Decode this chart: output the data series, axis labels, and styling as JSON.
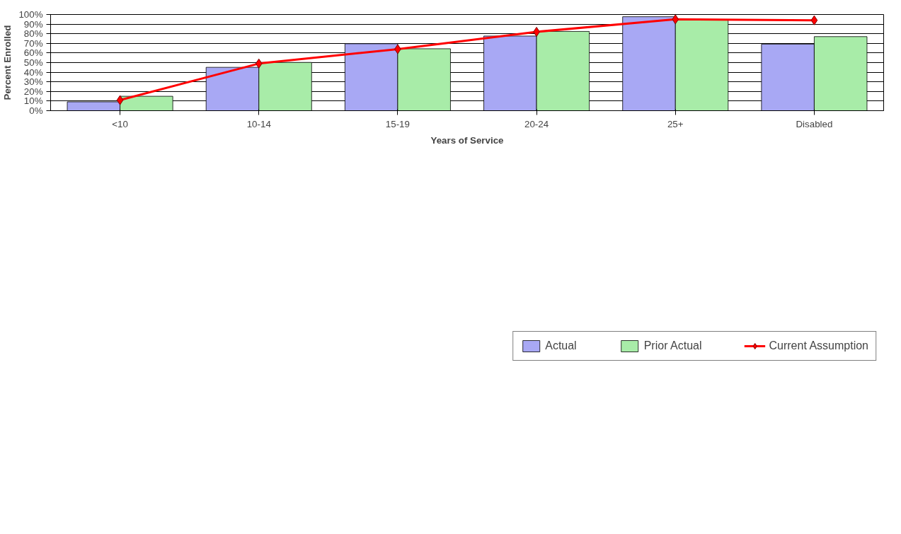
{
  "chart_data": {
    "type": "bar",
    "xlabel": "Years of Service",
    "ylabel": "Percent Enrolled",
    "categories": [
      "<10",
      "10-14",
      "15-19",
      "20-24",
      "25+",
      "Disabled"
    ],
    "series": [
      {
        "name": "Actual",
        "color": "#a8a8f4",
        "values": [
          9.2,
          45.1,
          69.6,
          77.6,
          97.7,
          69.2
        ]
      },
      {
        "name": "Prior Actual",
        "color": "#a8eca8",
        "values": [
          15.0,
          50.2,
          64.4,
          82.4,
          94.5,
          77.0
        ]
      },
      {
        "name": "Current Assumption",
        "type": "line",
        "color": "#ff0000",
        "values": [
          11,
          49,
          64,
          82,
          95,
          94
        ]
      }
    ],
    "marker": "diamond",
    "line_style": "solid",
    "ylim": [
      0,
      100
    ],
    "yticks": [
      {
        "value": 0,
        "label": "0%"
      },
      {
        "value": 10,
        "label": "10%"
      },
      {
        "value": 20,
        "label": "20%"
      },
      {
        "value": 30,
        "label": "30%"
      },
      {
        "value": 40,
        "label": "40%"
      },
      {
        "value": 50,
        "label": "50%"
      },
      {
        "value": 60,
        "label": "60%"
      },
      {
        "value": 70,
        "label": "70%"
      },
      {
        "value": 80,
        "label": "80%"
      },
      {
        "value": 90,
        "label": "90%"
      },
      {
        "value": 100,
        "label": "100%"
      }
    ],
    "grid": "y",
    "legend": "bottom"
  }
}
